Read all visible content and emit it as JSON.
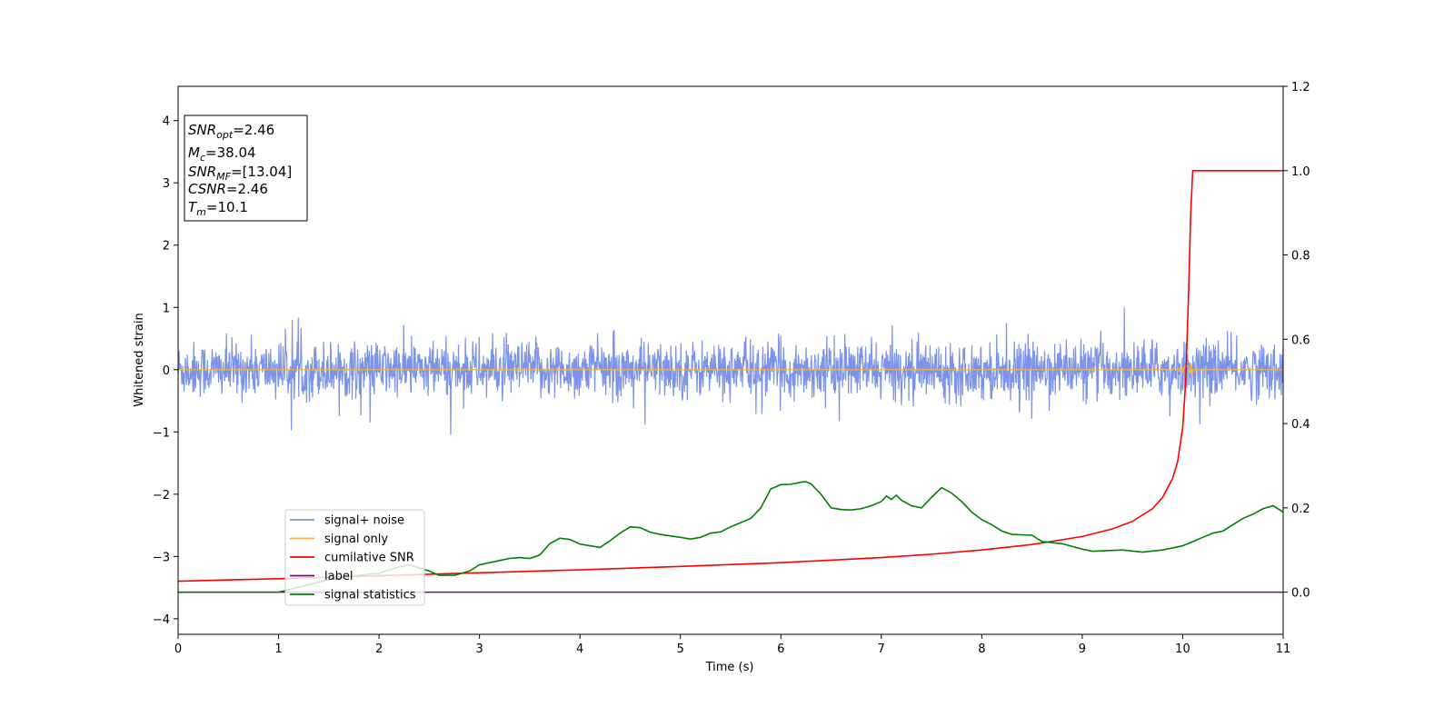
{
  "chart_data": {
    "type": "line",
    "title": "",
    "xlabel": "Time (s)",
    "ylabel": "Whitened strain",
    "xlim": [
      0,
      11
    ],
    "ylim_left": [
      -4.25,
      4.55
    ],
    "ylim_right": [
      -0.1,
      1.2
    ],
    "x_ticks": [
      0,
      1,
      2,
      3,
      4,
      5,
      6,
      7,
      8,
      9,
      10,
      11
    ],
    "x_tick_labels": [
      "0",
      "1",
      "2",
      "3",
      "4",
      "5",
      "6",
      "7",
      "8",
      "9",
      "10",
      "11"
    ],
    "y_left_ticks": [
      -4,
      -3,
      -2,
      -1,
      0,
      1,
      2,
      3,
      4
    ],
    "y_left_tick_labels": [
      "−4",
      "−3",
      "−2",
      "−1",
      "0",
      "1",
      "2",
      "3",
      "4"
    ],
    "y_right_ticks": [
      0.0,
      0.2,
      0.4,
      0.6,
      0.8,
      1.0,
      1.2
    ],
    "y_right_tick_labels": [
      "0.0",
      "0.2",
      "0.4",
      "0.6",
      "0.8",
      "1.0",
      "1.2"
    ],
    "grid": false,
    "legend_position": "lower-left",
    "annotation": {
      "snr_opt": {
        "base": "SNR",
        "sub": "opt",
        "value": "=2.46"
      },
      "mc": {
        "base": "M",
        "sub": "c",
        "value": "=38.04"
      },
      "snr_mf": {
        "base": "SNR",
        "sub": "MF",
        "value": "=[13.04]"
      },
      "csnr": {
        "base": "CSNR",
        "value": "=2.46"
      },
      "tm": {
        "base": "T",
        "sub": "m",
        "value": "=10.1"
      }
    },
    "series": [
      {
        "name": "signal+ noise",
        "axis": "left",
        "color": "#7b93e8",
        "kind": "noise",
        "typical_range": [
          -0.6,
          0.6
        ],
        "extremes": [
          -1.15,
          1.0
        ]
      },
      {
        "name": "signal only",
        "axis": "left",
        "color": "#f5b342",
        "kind": "chirp",
        "baseline": 0.0,
        "merger_time": 10.1,
        "peak_amplitude": 0.12
      },
      {
        "name": "cumilative SNR",
        "axis": "right",
        "color": "#ff0000",
        "x": [
          0,
          1,
          2,
          3,
          4,
          5,
          6,
          7,
          7.5,
          8,
          8.5,
          9,
          9.3,
          9.5,
          9.7,
          9.8,
          9.9,
          9.95,
          10.0,
          10.03,
          10.06,
          10.08,
          10.1,
          11
        ],
        "y": [
          0.026,
          0.032,
          0.039,
          0.046,
          0.053,
          0.061,
          0.07,
          0.082,
          0.09,
          0.1,
          0.113,
          0.132,
          0.15,
          0.168,
          0.198,
          0.225,
          0.27,
          0.31,
          0.39,
          0.5,
          0.72,
          0.9,
          1.0,
          1.0
        ]
      },
      {
        "name": "label",
        "axis": "right",
        "color": "#800080",
        "x": [
          0,
          11
        ],
        "y": [
          0.0,
          0.0
        ]
      },
      {
        "name": "signal statistics",
        "axis": "right",
        "color": "#008000",
        "x": [
          0,
          1.0,
          1.5,
          1.8,
          2.0,
          2.2,
          2.3,
          2.5,
          2.6,
          2.75,
          2.9,
          3.0,
          3.2,
          3.3,
          3.4,
          3.5,
          3.6,
          3.7,
          3.8,
          3.9,
          4.0,
          4.1,
          4.2,
          4.3,
          4.4,
          4.5,
          4.6,
          4.7,
          4.8,
          5.0,
          5.1,
          5.2,
          5.3,
          5.4,
          5.5,
          5.6,
          5.7,
          5.8,
          5.9,
          6.0,
          6.1,
          6.2,
          6.25,
          6.3,
          6.4,
          6.5,
          6.6,
          6.7,
          6.8,
          6.9,
          7.0,
          7.05,
          7.1,
          7.15,
          7.2,
          7.3,
          7.4,
          7.5,
          7.6,
          7.7,
          7.8,
          7.9,
          8.0,
          8.1,
          8.2,
          8.3,
          8.5,
          8.6,
          8.8,
          9.0,
          9.1,
          9.2,
          9.4,
          9.6,
          9.8,
          9.9,
          10.0,
          10.1,
          10.2,
          10.3,
          10.4,
          10.5,
          10.6,
          10.7,
          10.8,
          10.9,
          11.0
        ],
        "y": [
          0.0,
          0.0,
          0.03,
          0.04,
          0.045,
          0.06,
          0.065,
          0.05,
          0.04,
          0.04,
          0.05,
          0.065,
          0.075,
          0.08,
          0.082,
          0.08,
          0.088,
          0.115,
          0.128,
          0.125,
          0.114,
          0.11,
          0.106,
          0.122,
          0.14,
          0.155,
          0.153,
          0.142,
          0.137,
          0.13,
          0.126,
          0.13,
          0.14,
          0.143,
          0.155,
          0.165,
          0.175,
          0.2,
          0.245,
          0.255,
          0.256,
          0.261,
          0.262,
          0.257,
          0.232,
          0.2,
          0.196,
          0.195,
          0.198,
          0.205,
          0.215,
          0.228,
          0.22,
          0.23,
          0.218,
          0.205,
          0.2,
          0.225,
          0.248,
          0.235,
          0.215,
          0.19,
          0.172,
          0.16,
          0.145,
          0.137,
          0.135,
          0.12,
          0.115,
          0.102,
          0.097,
          0.098,
          0.1,
          0.095,
          0.1,
          0.105,
          0.11,
          0.12,
          0.13,
          0.14,
          0.145,
          0.16,
          0.175,
          0.185,
          0.198,
          0.205,
          0.19
        ]
      }
    ]
  }
}
